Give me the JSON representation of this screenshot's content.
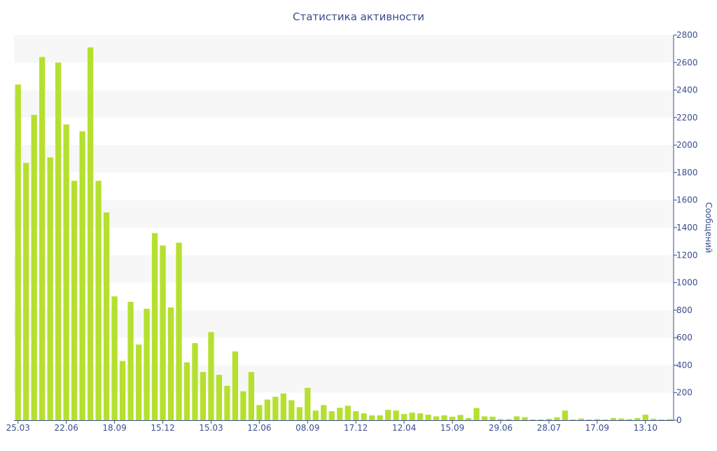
{
  "chart_data": {
    "type": "bar",
    "title": "Статистика активности",
    "xlabel": "",
    "ylabel": "Сообщений",
    "y_axis_side": "right",
    "ylim": [
      0,
      2800
    ],
    "yticks": [
      0,
      200,
      400,
      600,
      800,
      1000,
      1200,
      1400,
      1600,
      1800,
      2000,
      2200,
      2400,
      2600,
      2800
    ],
    "grid": "alternating horizontal bands",
    "legend": "none",
    "bar_color": "#b5e02e",
    "axis_color": "#3a4d8f",
    "band_color": "#f7f7f7",
    "x_tick_labels": [
      {
        "index": 0,
        "label": "25.03"
      },
      {
        "index": 6,
        "label": "22.06"
      },
      {
        "index": 12,
        "label": "18.09"
      },
      {
        "index": 18,
        "label": "15.12"
      },
      {
        "index": 24,
        "label": "15.03"
      },
      {
        "index": 30,
        "label": "12.06"
      },
      {
        "index": 36,
        "label": "08.09"
      },
      {
        "index": 42,
        "label": "17.12"
      },
      {
        "index": 48,
        "label": "12.04"
      },
      {
        "index": 54,
        "label": "15.09"
      },
      {
        "index": 60,
        "label": "29.06"
      },
      {
        "index": 66,
        "label": "28.07"
      },
      {
        "index": 72,
        "label": "17.09"
      },
      {
        "index": 78,
        "label": "13.10"
      }
    ],
    "values": [
      2440,
      1870,
      2220,
      2640,
      1910,
      2600,
      2150,
      1740,
      2100,
      2710,
      1740,
      1510,
      900,
      430,
      860,
      550,
      810,
      1360,
      1270,
      820,
      1290,
      420,
      560,
      350,
      640,
      330,
      250,
      500,
      210,
      350,
      110,
      150,
      170,
      195,
      145,
      95,
      235,
      70,
      110,
      65,
      90,
      105,
      65,
      50,
      35,
      35,
      75,
      70,
      45,
      55,
      50,
      40,
      28,
      35,
      25,
      38,
      15,
      88,
      28,
      25,
      8,
      8,
      28,
      22,
      6,
      6,
      10,
      20,
      70,
      6,
      12,
      6,
      8,
      6,
      15,
      12,
      8,
      15,
      40,
      10,
      6,
      8
    ]
  }
}
